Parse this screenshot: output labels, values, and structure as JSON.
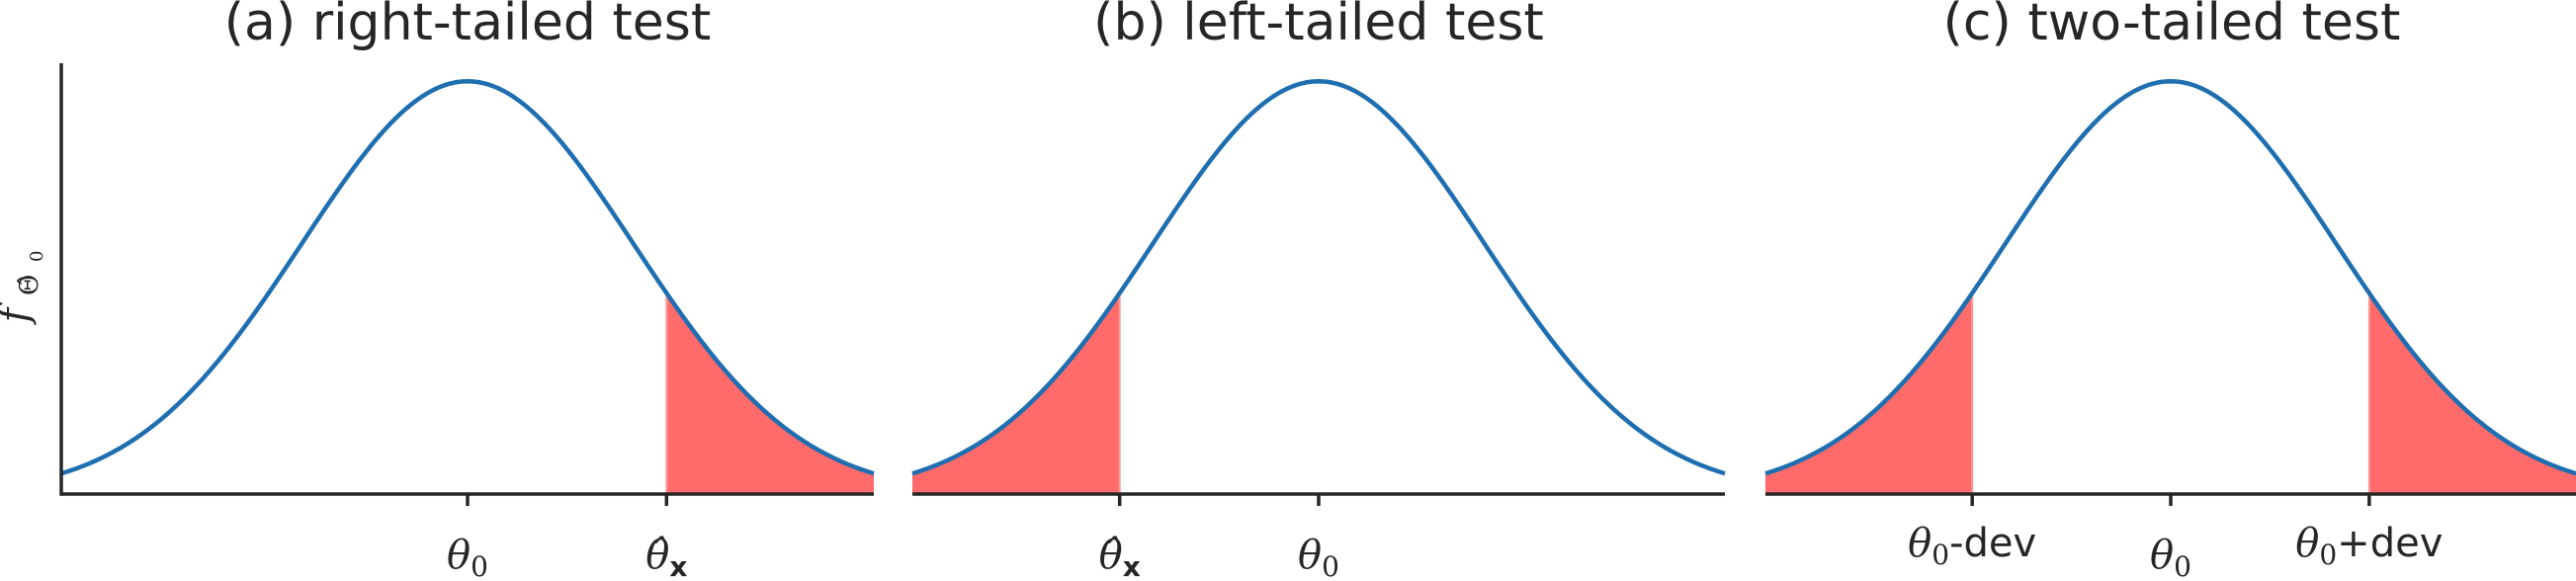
{
  "chart_data": [
    {
      "type": "area",
      "title": "(a) right-tailed test",
      "ylabel": "f_{\\widehat{\\Theta}_0}",
      "x_ticks": [
        {
          "x": 0,
          "label": "θ",
          "sub": "0",
          "suffix": ""
        },
        {
          "x": 1.2,
          "label": "θ̂",
          "sub": "x",
          "suffix": ""
        }
      ],
      "xlim": [
        -2.45,
        2.45
      ],
      "ylim": [
        0,
        0.42
      ],
      "series": [
        {
          "distribution": "normal",
          "mean": 0,
          "sd": 1
        }
      ],
      "shaded_regions": [
        [
          1.2,
          2.45
        ]
      ]
    },
    {
      "type": "area",
      "title": "(b) left-tailed test",
      "x_ticks": [
        {
          "x": -1.2,
          "label": "θ̂",
          "sub": "x",
          "suffix": ""
        },
        {
          "x": 0,
          "label": "θ",
          "sub": "0",
          "suffix": ""
        }
      ],
      "xlim": [
        -2.45,
        2.45
      ],
      "ylim": [
        0,
        0.42
      ],
      "series": [
        {
          "distribution": "normal",
          "mean": 0,
          "sd": 1
        }
      ],
      "shaded_regions": [
        [
          -2.45,
          -1.2
        ]
      ]
    },
    {
      "type": "area",
      "title": "(c) two-tailed test",
      "x_ticks": [
        {
          "x": -1.2,
          "label": "θ",
          "sub": "0",
          "suffix": "-dev"
        },
        {
          "x": 0,
          "label": "θ",
          "sub": "0",
          "suffix": ""
        },
        {
          "x": 1.2,
          "label": "θ",
          "sub": "0",
          "suffix": "+dev"
        }
      ],
      "xlim": [
        -2.45,
        2.45
      ],
      "ylim": [
        0,
        0.42
      ],
      "series": [
        {
          "distribution": "normal",
          "mean": 0,
          "sd": 1
        }
      ],
      "shaded_regions": [
        [
          -2.45,
          -1.2
        ],
        [
          1.2,
          2.45
        ]
      ]
    }
  ],
  "colors": {
    "curve": "#1f6fb0",
    "tail_fill": "#ff6a6a",
    "tail_edge": "#ff9a9a",
    "axis": "#262626",
    "text": "#262626"
  }
}
